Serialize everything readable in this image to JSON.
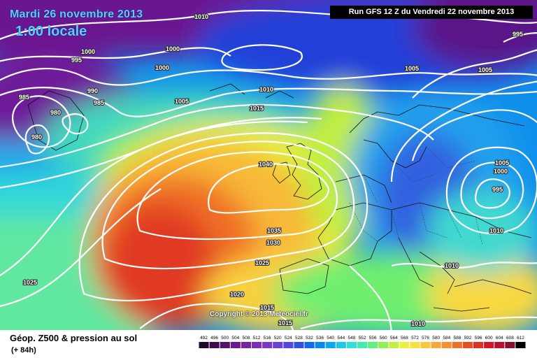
{
  "header": {
    "date": "Mardi 26 novembre 2013",
    "time": "1:00 locale",
    "run": "Run GFS 12 Z du Vendredi 22 novembre 2013"
  },
  "copyright": "Copyright © 2013 Meteociel.fr",
  "footer": {
    "title": "Géop. Z500 & pression au sol",
    "subtitle": "(+ 84h)"
  },
  "legend": {
    "values": [
      "492",
      "496",
      "500",
      "504",
      "508",
      "512",
      "516",
      "520",
      "524",
      "528",
      "532",
      "536",
      "540",
      "544",
      "548",
      "552",
      "556",
      "560",
      "564",
      "568",
      "572",
      "576",
      "580",
      "584",
      "588",
      "592",
      "596",
      "600",
      "604",
      "608",
      "612"
    ],
    "colors": [
      "#1e0a28",
      "#3a0a4a",
      "#55106a",
      "#6e1890",
      "#7a22a6",
      "#7e2cbc",
      "#7a36cc",
      "#6a40d8",
      "#5048e0",
      "#3050e6",
      "#1068ea",
      "#0a88ec",
      "#10a8ec",
      "#20c8e8",
      "#30e0d8",
      "#40ecb0",
      "#60f080",
      "#90f050",
      "#c0f040",
      "#e8f040",
      "#f8e040",
      "#f8c840",
      "#f8a838",
      "#f89030",
      "#f07028",
      "#e85020",
      "#e03020",
      "#d01828",
      "#b81030",
      "#881030",
      "#000000"
    ]
  },
  "isobars": [
    "1010",
    "1000",
    "1000",
    "995",
    "1000",
    "990",
    "985",
    "985",
    "980",
    "980",
    "1010",
    "1005",
    "1015",
    "1040",
    "1035",
    "1030",
    "1025",
    "1025",
    "1020",
    "1015",
    "1015",
    "1005",
    "1005",
    "995",
    "1005",
    "1000",
    "995",
    "1010",
    "1010",
    "1010"
  ]
}
